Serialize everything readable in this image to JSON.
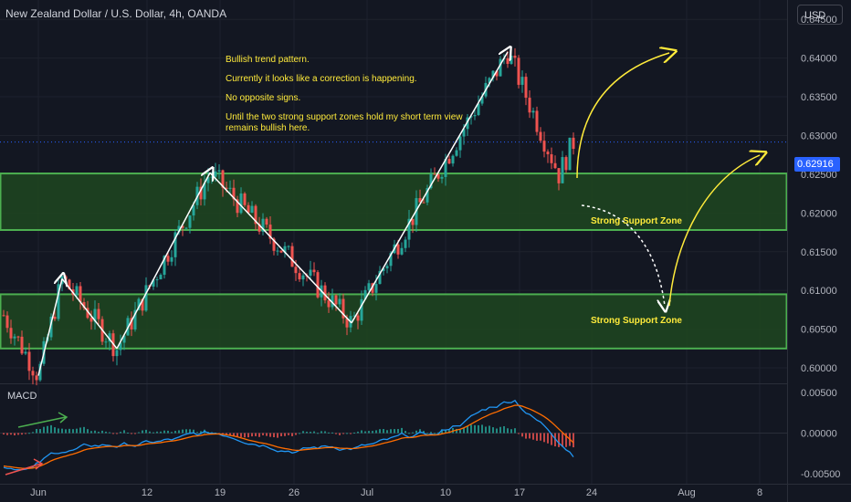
{
  "header": {
    "title": "New Zealand Dollar / U.S. Dollar, 4h, OANDA",
    "currency_button": "USD"
  },
  "annotations": {
    "lines": [
      "Bullish trend pattern.",
      "Currently it looks like a correction is happening.",
      "No opposite signs.",
      "Until the two strong support zones hold my short term view remains bullish here."
    ],
    "zone_upper_label": "Strong Support Zone",
    "zone_lower_label": "Strong Support Zone"
  },
  "indicator": {
    "label": "MACD"
  },
  "price_scale": {
    "last_price": "0.62916",
    "labels": [
      "0.64500",
      "0.64000",
      "0.63500",
      "0.63000",
      "0.62500",
      "0.62000",
      "0.61500",
      "0.61000",
      "0.60500",
      "0.60000"
    ],
    "macd_labels": [
      "0.00500",
      "0.00000",
      "-0.00500"
    ]
  },
  "time_axis": [
    "Jun",
    "12",
    "19",
    "26",
    "Jul",
    "10",
    "17",
    "24",
    "Aug",
    "8"
  ],
  "colors": {
    "background": "#131722",
    "bull_candle": "#26a69a",
    "bear_candle": "#ef5350",
    "zone_fill": "#1e4620",
    "zone_border": "#4caf50",
    "annotation_text": "#ffeb3b",
    "macd_line": "#2196f3",
    "signal_line": "#ff6d00",
    "last_price": "#2962ff"
  },
  "chart_data": {
    "type": "candlestick",
    "title": "New Zealand Dollar / U.S. Dollar, 4h, OANDA",
    "symbol": "NZDUSD",
    "timeframe": "4h",
    "ylim": [
      0.598,
      0.6475
    ],
    "last_close": 0.62916,
    "support_zones": [
      {
        "name": "Strong Support Zone",
        "low": 0.6178,
        "high": 0.6251
      },
      {
        "name": "Strong Support Zone",
        "low": 0.6025,
        "high": 0.6095
      }
    ],
    "swing_points": [
      {
        "date": "Jun 1",
        "price": 0.599
      },
      {
        "date": "Jun 5",
        "price": 0.6115
      },
      {
        "date": "Jun 9",
        "price": 0.6025
      },
      {
        "date": "Jun 16",
        "price": 0.6252
      },
      {
        "date": "Jun 30",
        "price": 0.6058
      },
      {
        "date": "Jul 14",
        "price": 0.6408
      },
      {
        "date": "Jul 20",
        "price": 0.625
      }
    ],
    "macd_ylim": [
      -0.006,
      0.006
    ]
  }
}
